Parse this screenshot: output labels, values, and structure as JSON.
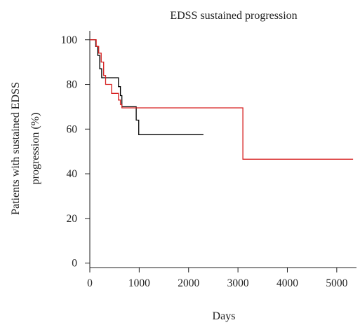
{
  "chart_data": {
    "type": "line",
    "step": true,
    "title": "EDSS sustained progression",
    "xlabel": "Days",
    "ylabel_lines": [
      "Patients with sustained EDSS",
      "progression (%)"
    ],
    "xlim": [
      0,
      5400
    ],
    "ylim": [
      -2,
      104
    ],
    "xticks": [
      0,
      1000,
      2000,
      3000,
      4000,
      5000
    ],
    "yticks": [
      0,
      20,
      40,
      60,
      80,
      100
    ],
    "grid": false,
    "legend": "none",
    "series": [
      {
        "color": "#000000",
        "x": [
          0,
          80,
          120,
          160,
          200,
          240,
          300,
          380,
          530,
          580,
          620,
          650,
          900,
          940,
          990,
          2300
        ],
        "y": [
          100,
          100,
          97,
          93,
          87,
          83,
          83,
          83,
          83,
          79,
          75,
          70,
          70,
          64,
          57.5,
          57.5
        ]
      },
      {
        "color": "#d62020",
        "x": [
          0,
          130,
          180,
          230,
          280,
          320,
          440,
          580,
          620,
          650,
          3080,
          3100,
          5330
        ],
        "y": [
          100,
          97,
          94,
          90,
          84,
          80,
          76,
          73,
          71,
          69.5,
          69.5,
          46.5,
          46.5
        ]
      }
    ]
  }
}
